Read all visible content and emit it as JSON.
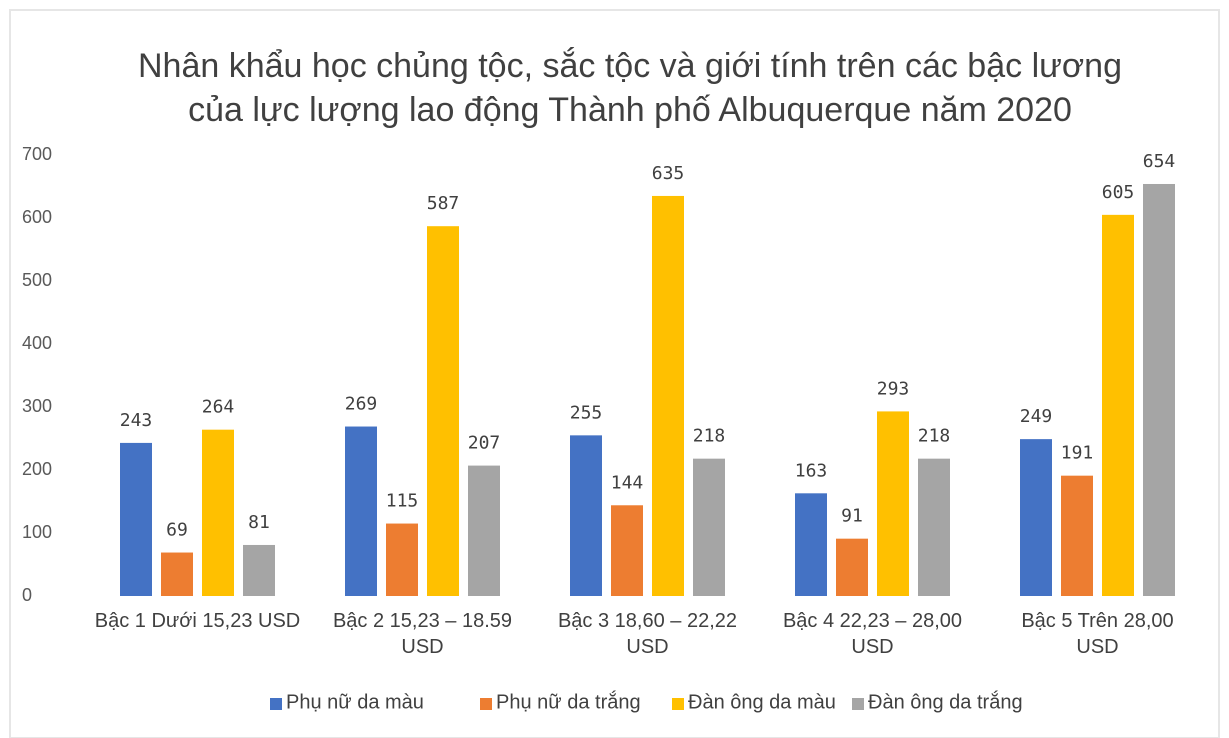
{
  "chart_data": {
    "type": "bar",
    "title": "Nhân khẩu học chủng tộc, sắc tộc và giới tính trên các bậc lương của lực lượng lao động Thành phố Albuquerque năm 2020",
    "categories": [
      "Bậc 1 Dưới 15,23 USD",
      "Bậc 2 15,23 – 18.59 USD",
      "Bậc 3 18,60 – 22,22 USD",
      "Bậc 4 22,23 – 28,00 USD",
      "Bậc 5 Trên 28,00 USD"
    ],
    "series": [
      {
        "name": "Phụ nữ da màu",
        "color": "#4472c4",
        "values": [
          243,
          269,
          255,
          163,
          249
        ]
      },
      {
        "name": "Phụ nữ da trắng",
        "color": "#ed7d31",
        "values": [
          69,
          115,
          144,
          91,
          191
        ]
      },
      {
        "name": "Đàn ông da màu",
        "color": "#ffc000",
        "values": [
          264,
          587,
          635,
          293,
          605
        ]
      },
      {
        "name": "Đàn ông da trắng",
        "color": "#a5a5a5",
        "values": [
          81,
          207,
          218,
          218,
          654
        ]
      }
    ],
    "ylim": [
      0,
      700
    ],
    "yticks": [
      0,
      100,
      200,
      300,
      400,
      500,
      600,
      700
    ],
    "grid": false,
    "legend": "bottom"
  }
}
